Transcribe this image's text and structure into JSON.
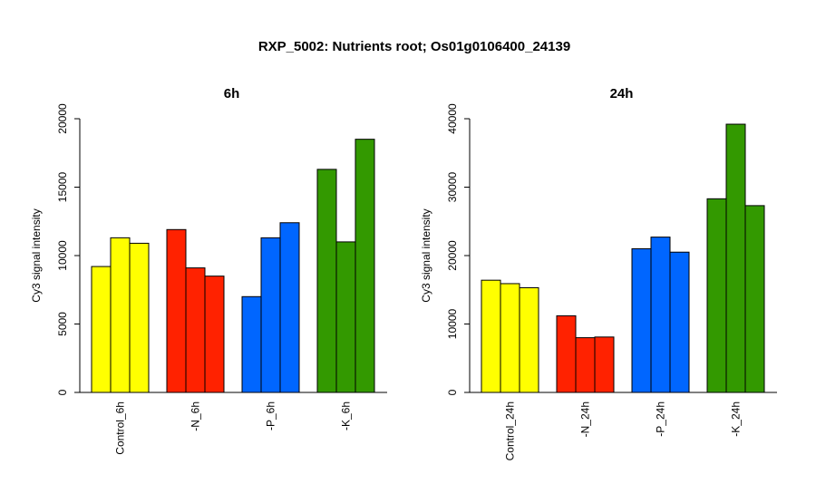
{
  "chart_data": {
    "title": "RXP_5002: Nutrients root; Os01g0106400_24139",
    "panels": [
      {
        "type": "bar",
        "title": "6h",
        "ylabel": "Cy3 signal intensity",
        "ylim": [
          0,
          20000
        ],
        "yticks": [
          0,
          5000,
          10000,
          15000,
          20000
        ],
        "categories": [
          "Control_6h",
          "-N_6h",
          "-P_6h",
          "-K_6h"
        ],
        "colors": [
          "#ffff00",
          "#ff2200",
          "#0066ff",
          "#339900"
        ],
        "replicates": [
          [
            9200,
            11300,
            10900
          ],
          [
            11900,
            9100,
            8500
          ],
          [
            7000,
            11300,
            12400
          ],
          [
            16300,
            11000,
            18500
          ]
        ]
      },
      {
        "type": "bar",
        "title": "24h",
        "ylabel": "Cy3 signal intensity",
        "ylim": [
          0,
          40000
        ],
        "yticks": [
          0,
          10000,
          20000,
          30000,
          40000
        ],
        "categories": [
          "Control_24h",
          "-N_24h",
          "-P_24h",
          "-K_24h"
        ],
        "colors": [
          "#ffff00",
          "#ff2200",
          "#0066ff",
          "#339900"
        ],
        "replicates": [
          [
            16400,
            15900,
            15300
          ],
          [
            11200,
            8000,
            8100
          ],
          [
            21000,
            22700,
            20500
          ],
          [
            28300,
            39200,
            27300
          ]
        ]
      }
    ]
  }
}
